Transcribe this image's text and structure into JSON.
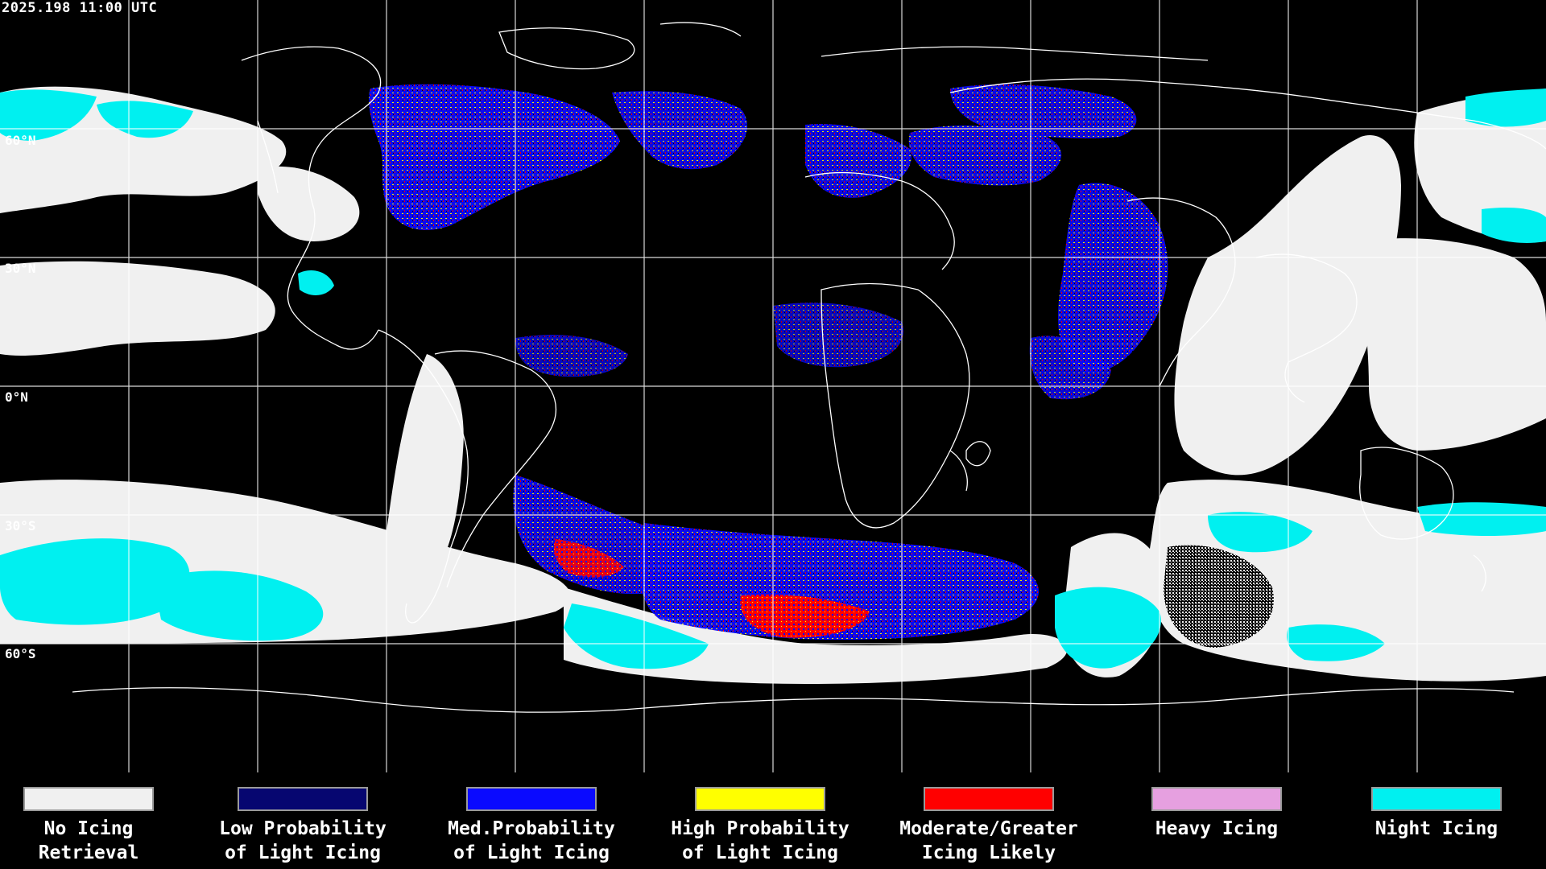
{
  "header": {
    "timestamp": "2025.198 11:00 UTC"
  },
  "map": {
    "latitude_labels": [
      "60°N",
      "30°N",
      "0°N",
      "30°S",
      "60°S"
    ],
    "colors": {
      "background": "#000000",
      "grid": "#ffffff",
      "coastline": "#ffffff",
      "no_icing": "#f0f0f0",
      "low_prob": "#0a0a7a",
      "med_prob": "#1414ff",
      "high_prob": "#ffff00",
      "moderate": "#ff0000",
      "heavy": "#e8a0e0",
      "night": "#00ffff"
    }
  },
  "legend": {
    "items": [
      {
        "label": "No Icing\nRetrieval",
        "color": "#f0f0f0"
      },
      {
        "label": "Low Probability\nof Light Icing",
        "color": "#060670"
      },
      {
        "label": "Med.Probability\nof Light Icing",
        "color": "#0a0aff"
      },
      {
        "label": "High Probability\nof Light Icing",
        "color": "#ffff00"
      },
      {
        "label": "Moderate/Greater\nIcing Likely",
        "color": "#ff0000"
      },
      {
        "label": "Heavy Icing",
        "color": "#e6a0e0"
      },
      {
        "label": "Night Icing",
        "color": "#00f0f0"
      }
    ]
  }
}
